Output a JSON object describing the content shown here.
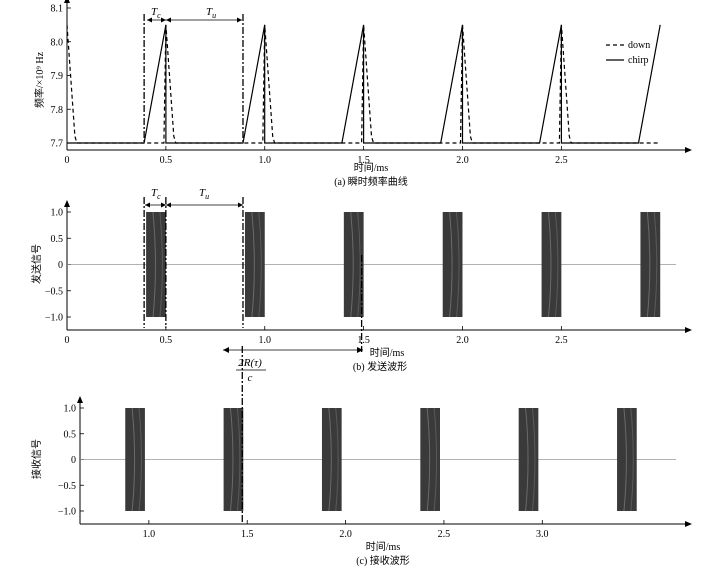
{
  "chart_data": [
    {
      "type": "line",
      "caption": "(a) 瞬时频率曲线",
      "xlabel": "时间/ms",
      "ylabel": "频率/×10⁹ Hz",
      "xlim": [
        0,
        3.1
      ],
      "ylim": [
        7.7,
        8.1
      ],
      "x_ticks": [
        0,
        0.5,
        1.0,
        1.5,
        2.0,
        2.5
      ],
      "x_tick_labels": [
        "0",
        "0.5",
        "1.0",
        "1.5",
        "2.0",
        "2.5"
      ],
      "y_ticks": [
        7.7,
        7.8,
        7.9,
        8.0,
        8.1
      ],
      "y_tick_labels": [
        "7.7",
        "7.8",
        "7.9",
        "8.0",
        "8.1"
      ],
      "legend": {
        "position": "top-right",
        "entries": [
          "down",
          "chirp"
        ]
      },
      "annotations": [
        "T",
        "T"
      ],
      "annotation_subscripts": [
        "c",
        "u"
      ],
      "series": [
        {
          "name": "down",
          "style": "dashed",
          "x": [
            0,
            0.04,
            0.05,
            0.49,
            0.5,
            0.54,
            0.55,
            0.99,
            1.0,
            1.04,
            1.05,
            1.49,
            1.5,
            1.54,
            1.55,
            1.99,
            2.0,
            2.04,
            2.05,
            2.49,
            2.5,
            2.54,
            2.55,
            2.99
          ],
          "y": [
            8.05,
            7.72,
            7.7,
            7.7,
            8.05,
            7.72,
            7.7,
            7.7,
            8.05,
            7.72,
            7.7,
            7.7,
            8.05,
            7.72,
            7.7,
            7.7,
            8.05,
            7.72,
            7.7,
            7.7,
            8.05,
            7.72,
            7.7,
            7.7
          ]
        },
        {
          "name": "chirp",
          "style": "solid",
          "x": [
            0,
            0.39,
            0.5,
            0.5,
            0.89,
            1.0,
            1.0,
            1.39,
            1.5,
            1.5,
            1.89,
            2.0,
            2.0,
            2.39,
            2.5,
            2.5,
            2.89,
            3.0
          ],
          "y": [
            7.7,
            7.7,
            8.05,
            7.7,
            7.7,
            8.05,
            7.7,
            7.7,
            8.05,
            7.7,
            7.7,
            8.05,
            7.7,
            7.7,
            8.05,
            7.7,
            7.7,
            8.05
          ]
        }
      ]
    },
    {
      "type": "line",
      "caption": "(b) 发送波形",
      "xlabel": "时间/ms",
      "ylabel": "发送信号",
      "xlim": [
        0,
        3.1
      ],
      "ylim": [
        -1.1,
        1.1
      ],
      "x_ticks": [
        0,
        0.5,
        1.0,
        1.5,
        2.0,
        2.5
      ],
      "x_tick_labels": [
        "0",
        "0.5",
        "1.0",
        "1.5",
        "2.0",
        "2.5"
      ],
      "y_ticks": [
        -1.0,
        -0.5,
        0,
        0.5,
        1.0
      ],
      "y_tick_labels": [
        "−1.0",
        "−0.5",
        "0",
        "0.5",
        "1.0"
      ],
      "annotations": [
        "T",
        "T"
      ],
      "annotation_subscripts": [
        "c",
        "u"
      ],
      "pulses": [
        {
          "start": 0.4,
          "end": 0.5
        },
        {
          "start": 0.9,
          "end": 1.0
        },
        {
          "start": 1.4,
          "end": 1.5
        },
        {
          "start": 1.9,
          "end": 2.0
        },
        {
          "start": 2.4,
          "end": 2.5
        },
        {
          "start": 2.9,
          "end": 3.0
        }
      ],
      "amplitude": 1.0
    },
    {
      "type": "line",
      "caption": "(c) 接收波形",
      "xlabel": "时间/ms",
      "ylabel": "接收信号",
      "xlim": [
        0.65,
        3.7
      ],
      "ylim": [
        -1.1,
        1.1
      ],
      "x_ticks": [
        1.0,
        1.5,
        2.0,
        2.5,
        3.0
      ],
      "x_tick_labels": [
        "1.0",
        "1.5",
        "2.0",
        "2.5",
        "3.0"
      ],
      "y_ticks": [
        -1.0,
        -0.5,
        0,
        0.5,
        1.0
      ],
      "y_tick_labels": [
        "−1.0",
        "−0.5",
        "0",
        "0.5",
        "1.0"
      ],
      "pulses": [
        {
          "start": 0.88,
          "end": 0.98
        },
        {
          "start": 1.38,
          "end": 1.48
        },
        {
          "start": 1.88,
          "end": 1.98
        },
        {
          "start": 2.38,
          "end": 2.48
        },
        {
          "start": 2.88,
          "end": 2.98
        },
        {
          "start": 3.38,
          "end": 3.48
        }
      ],
      "amplitude": 1.0,
      "delay_annotation": {
        "numerator": "2R(τ)",
        "denominator": "c"
      }
    }
  ]
}
